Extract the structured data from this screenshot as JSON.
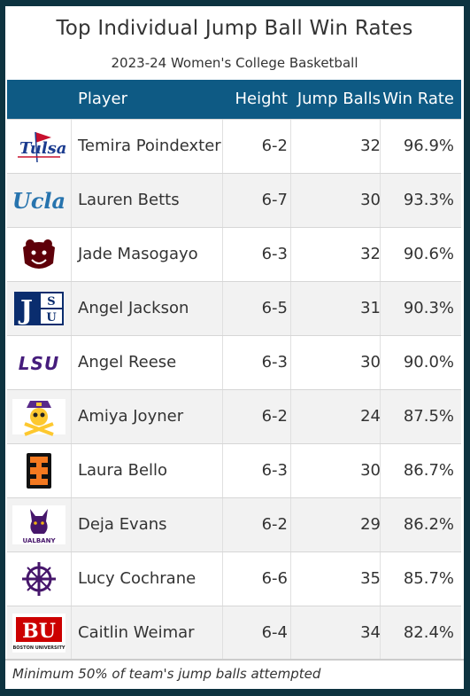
{
  "title": "Top Individual Jump Ball Win Rates",
  "subtitle": "2023-24 Women's College Basketball",
  "columns": {
    "player": "Player",
    "height": "Height",
    "jump_balls": "Jump Balls",
    "win_rate": "Win Rate"
  },
  "rows": [
    {
      "logo": "tulsa-logo",
      "player": "Temira Poindexter",
      "height": "6-2",
      "jump_balls": "32",
      "win_rate": "96.9%"
    },
    {
      "logo": "ucla-logo",
      "player": "Lauren Betts",
      "height": "6-7",
      "jump_balls": "30",
      "win_rate": "93.3%"
    },
    {
      "logo": "missouri-state-logo",
      "player": "Jade Masogayo",
      "height": "6-3",
      "jump_balls": "32",
      "win_rate": "90.6%"
    },
    {
      "logo": "jsu-logo",
      "player": "Angel Jackson",
      "height": "6-5",
      "jump_balls": "31",
      "win_rate": "90.3%"
    },
    {
      "logo": "lsu-logo",
      "player": "Angel Reese",
      "height": "6-3",
      "jump_balls": "30",
      "win_rate": "90.0%"
    },
    {
      "logo": "ecu-logo",
      "player": "Amiya Joyner",
      "height": "6-2",
      "jump_balls": "24",
      "win_rate": "87.5%"
    },
    {
      "logo": "idaho-state-logo",
      "player": "Laura Bello",
      "height": "6-3",
      "jump_balls": "30",
      "win_rate": "86.7%"
    },
    {
      "logo": "ualbany-logo",
      "player": "Deja Evans",
      "height": "6-2",
      "jump_balls": "29",
      "win_rate": "86.2%"
    },
    {
      "logo": "navy-logo",
      "player": "Lucy Cochrane",
      "height": "6-6",
      "jump_balls": "35",
      "win_rate": "85.7%"
    },
    {
      "logo": "boston-university-logo",
      "player": "Caitlin Weimar",
      "height": "6-4",
      "jump_balls": "34",
      "win_rate": "82.4%"
    }
  ],
  "logo_text": {
    "tulsa": "Tulsa",
    "ucla": "Ucla",
    "jsu_j": "J",
    "jsu_s": "S",
    "jsu_u": "U",
    "lsu": "LSU",
    "ualbany": "UALBANY",
    "bu": "BU",
    "bu_sub": "BOSTON UNIVERSITY"
  },
  "footer": "Minimum 50% of team's jump balls attempted",
  "colors": {
    "background": "#0d3340",
    "header": "#0e5a84",
    "stripe": "#f2f2f2"
  }
}
